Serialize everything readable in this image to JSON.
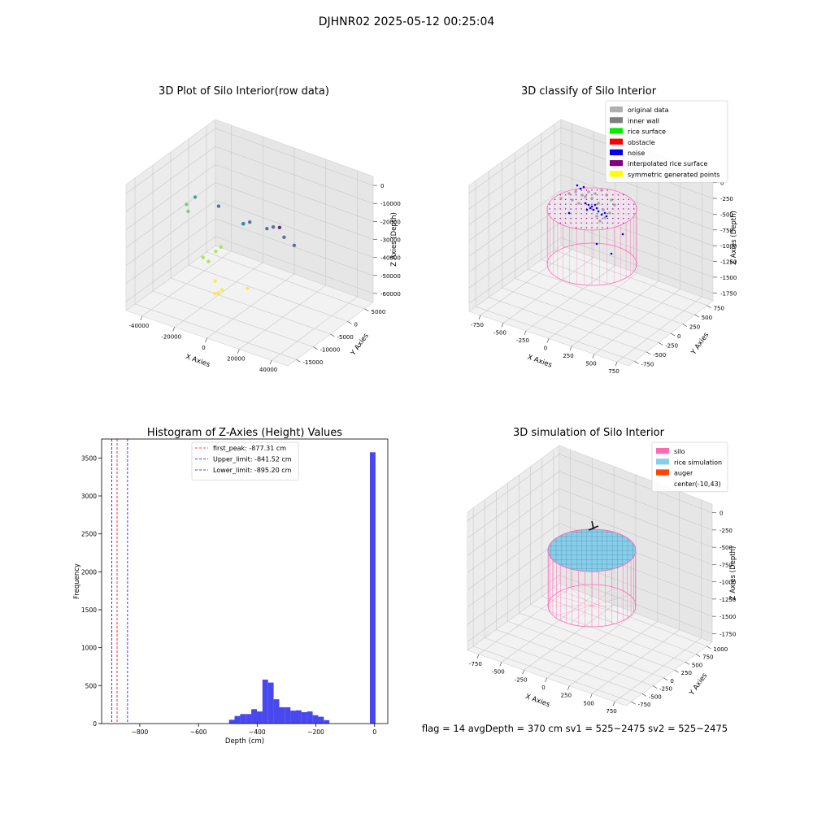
{
  "suptitle": "DJHNR02 2025-05-12 00:25:04",
  "footer_text": "flag = 14   avgDepth = 370 cm  sv1 = 525~2475  sv2 = 525~2475",
  "chart_data": [
    {
      "type": "scatter",
      "projection": "3d",
      "title": "3D Plot of Silo Interior(row data)",
      "xlabel": "X Axies",
      "ylabel": "Y Axies",
      "zlabel": "Z Axies (Depth)",
      "x_ticks": [
        "-40000",
        "-20000",
        "0",
        "20000",
        "40000"
      ],
      "y_ticks": [
        "-15000",
        "-10000",
        "-5000",
        "0",
        "5000"
      ],
      "z_ticks": [
        "-60000",
        "-50000",
        "-40000",
        "-30000",
        "-20000",
        "-10000",
        "0"
      ],
      "colormap": "viridis",
      "points": [
        {
          "x": -8000,
          "y": -2000,
          "z": -2000
        },
        {
          "x": -7000,
          "y": -2000,
          "z": -3000
        },
        {
          "x": -6500,
          "y": -1500,
          "z": -4000
        },
        {
          "x": -9000,
          "y": -1000,
          "z": -6000
        },
        {
          "x": -3000,
          "y": 2000,
          "z": -2000
        },
        {
          "x": -12000,
          "y": 0,
          "z": -12000
        },
        {
          "x": -13000,
          "y": -500,
          "z": -14000
        },
        {
          "x": -11000,
          "y": 1000,
          "z": -16000
        },
        {
          "x": -9000,
          "y": 500,
          "z": -20000
        },
        {
          "x": -20000,
          "y": 2000,
          "z": -28000
        },
        {
          "x": -21000,
          "y": 2500,
          "z": -30000
        },
        {
          "x": -18000,
          "y": 2000,
          "z": -36000
        },
        {
          "x": -2000,
          "y": 0,
          "z": -36000
        },
        {
          "x": -1000,
          "y": -1000,
          "z": -38000
        },
        {
          "x": 2000,
          "y": -2000,
          "z": -42000
        },
        {
          "x": 8000,
          "y": -3000,
          "z": -44000
        },
        {
          "x": 14000,
          "y": -4000,
          "z": -45000
        },
        {
          "x": 18000,
          "y": -5000,
          "z": -45000
        },
        {
          "x": -8000,
          "y": -1000,
          "z": -42000
        },
        {
          "x": 12000,
          "y": -5000,
          "z": -50000
        },
        {
          "x": 16000,
          "y": -7000,
          "z": -55000
        }
      ]
    },
    {
      "type": "scatter",
      "projection": "3d",
      "title": "3D classify of Silo Interior",
      "xlabel": "X Axies",
      "ylabel": "Y Axies",
      "zlabel": "Z Axies (Depth)",
      "x_ticks": [
        "-750",
        "-500",
        "-250",
        "0",
        "250",
        "500",
        "750"
      ],
      "y_ticks": [
        "-750",
        "-500",
        "-250",
        "0",
        "250",
        "500",
        "750"
      ],
      "z_ticks": [
        "-1750",
        "-1500",
        "-1250",
        "-1000",
        "-750",
        "-500",
        "-250",
        "0"
      ],
      "legend": [
        {
          "label": "original data",
          "color": "#b0b0b0"
        },
        {
          "label": "inner wall",
          "color": "#808080"
        },
        {
          "label": "rice surface",
          "color": "#00ee00"
        },
        {
          "label": "obstacle",
          "color": "#ff0000"
        },
        {
          "label": "noise",
          "color": "#0000ee"
        },
        {
          "label": "interpolated rice surface",
          "color": "#800080"
        },
        {
          "label": "symmetric generated points",
          "color": "#ffff00"
        }
      ],
      "legend_position": "upper right",
      "silo_color": "#ff69b4"
    },
    {
      "type": "histogram",
      "title": "Histogram of Z-Axies (Height) Values",
      "xlabel": "Depth (cm)",
      "ylabel": "Frequency",
      "xlim": [
        -930,
        45
      ],
      "ylim": [
        0,
        3750
      ],
      "x_ticks": [
        -800,
        -600,
        -400,
        -200,
        0
      ],
      "y_ticks": [
        0,
        500,
        1000,
        1500,
        2000,
        2500,
        3000,
        3500
      ],
      "bar_color": "#4848ee",
      "bins": [
        {
          "x0": -496,
          "x1": -477,
          "count": 50
        },
        {
          "x0": -477,
          "x1": -458,
          "count": 100
        },
        {
          "x0": -458,
          "x1": -439,
          "count": 125
        },
        {
          "x0": -439,
          "x1": -420,
          "count": 125
        },
        {
          "x0": -420,
          "x1": -401,
          "count": 190
        },
        {
          "x0": -401,
          "x1": -382,
          "count": 160
        },
        {
          "x0": -382,
          "x1": -363,
          "count": 580
        },
        {
          "x0": -363,
          "x1": -344,
          "count": 540
        },
        {
          "x0": -344,
          "x1": -325,
          "count": 320
        },
        {
          "x0": -325,
          "x1": -306,
          "count": 215
        },
        {
          "x0": -306,
          "x1": -287,
          "count": 215
        },
        {
          "x0": -287,
          "x1": -268,
          "count": 170
        },
        {
          "x0": -268,
          "x1": -249,
          "count": 175
        },
        {
          "x0": -249,
          "x1": -230,
          "count": 150
        },
        {
          "x0": -230,
          "x1": -211,
          "count": 160
        },
        {
          "x0": -211,
          "x1": -192,
          "count": 110
        },
        {
          "x0": -192,
          "x1": -173,
          "count": 90
        },
        {
          "x0": -173,
          "x1": -154,
          "count": 45
        },
        {
          "x0": -16,
          "x1": 3,
          "count": 3575
        }
      ],
      "lines": [
        {
          "label": "first_peak: -877.31 cm",
          "x": -877.31,
          "color": "#ff0000"
        },
        {
          "label": "Upper_limit: -841.52 cm",
          "x": -841.52,
          "color": "#0000ff"
        },
        {
          "label": "Lower_limit: -895.20 cm",
          "x": -895.2,
          "color": "#0000ff"
        }
      ],
      "legend_position": "upper center"
    },
    {
      "type": "surface",
      "projection": "3d",
      "title": "3D simulation of Silo Interior",
      "xlabel": "X Axies",
      "ylabel": "Y Axies",
      "zlabel": "Z Axies (Depth)",
      "x_ticks": [
        "-750",
        "-500",
        "-250",
        "0",
        "250",
        "500",
        "750"
      ],
      "y_ticks": [
        "-750",
        "-500",
        "-250",
        "0",
        "250",
        "500",
        "750",
        "1000"
      ],
      "z_ticks": [
        "-1750",
        "-1500",
        "-1250",
        "-1000",
        "-750",
        "-500",
        "-250",
        "0"
      ],
      "legend": [
        {
          "label": "silo",
          "color": "#ff69b4"
        },
        {
          "label": "rice simulation",
          "color": "#87ceeb"
        },
        {
          "label": "auger",
          "color": "#ff4500"
        },
        {
          "label": "center(-10,43)",
          "color": ""
        }
      ],
      "legend_position": "upper right"
    }
  ]
}
